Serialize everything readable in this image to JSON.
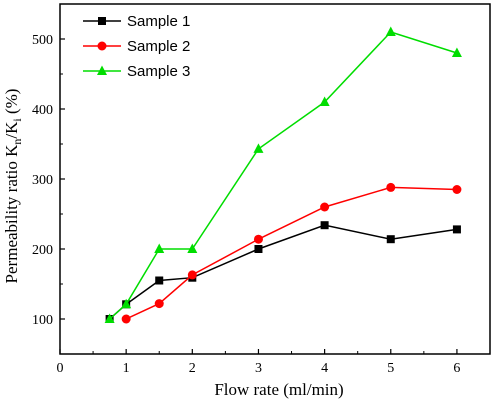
{
  "chart_data": {
    "type": "line",
    "xlabel": "Flow rate (ml/min)",
    "ylabel": {
      "main": "Permeability ratio K",
      "sub1": "n",
      "mid": "/K",
      "sub2": "i",
      "end": " (%)"
    },
    "xlim": [
      0,
      6.5
    ],
    "ylim": [
      50,
      550
    ],
    "xticks": [
      0,
      1,
      2,
      3,
      4,
      5,
      6
    ],
    "yticks": [
      100,
      200,
      300,
      400,
      500
    ],
    "grid": false,
    "legend_position": "top-left",
    "series": [
      {
        "name": "Sample 1",
        "color": "#000000",
        "marker": "square",
        "x": [
          0.75,
          1,
          1.5,
          2,
          3,
          4,
          5,
          6
        ],
        "y": [
          100,
          121,
          155,
          159,
          200,
          234,
          214,
          228
        ]
      },
      {
        "name": "Sample 2",
        "color": "#ff0000",
        "marker": "circle",
        "x": [
          1,
          1.5,
          2,
          3,
          4,
          5,
          6
        ],
        "y": [
          100,
          122,
          163,
          214,
          260,
          288,
          285
        ]
      },
      {
        "name": "Sample 3",
        "color": "#00dd00",
        "marker": "triangle",
        "x": [
          0.75,
          1,
          1.5,
          2,
          3,
          4,
          5,
          6
        ],
        "y": [
          100,
          121,
          200,
          200,
          343,
          410,
          510,
          480
        ]
      }
    ]
  }
}
